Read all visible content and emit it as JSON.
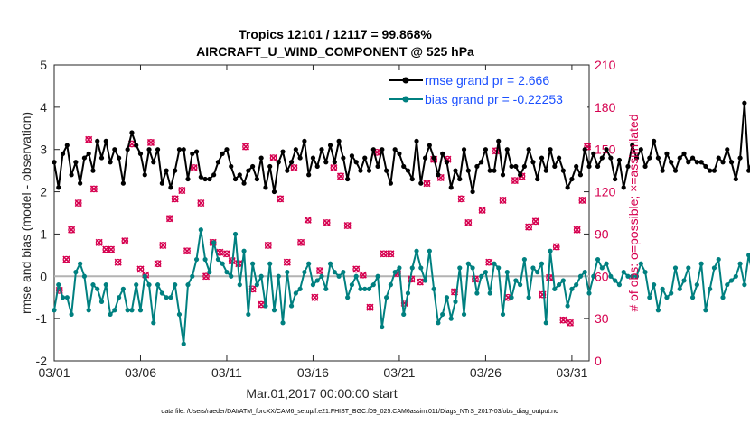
{
  "chart_data": {
    "type": "line",
    "title_line1": "Tropics 12101 / 12117 = 99.868%",
    "title_line2": "AIRCRAFT_U_WIND_COMPONENT @ 525 hPa",
    "xlabel": "Mar.01,2017 00:00:00 start",
    "ylabel": "rmse and bias (model - observation)",
    "ylabel_right": "# of obs: o=possible; ×=assimilated",
    "x_tick_labels": [
      "03/01",
      "03/06",
      "03/11",
      "03/16",
      "03/21",
      "03/26",
      "03/31"
    ],
    "x_tick_days": [
      1,
      6,
      11,
      16,
      21,
      26,
      31
    ],
    "xlim": [
      1,
      32
    ],
    "ylim": [
      -2,
      5
    ],
    "y_ticks": [
      "-2",
      "-1",
      "0",
      "1",
      "2",
      "3",
      "4",
      "5"
    ],
    "ylim_right": [
      0,
      210
    ],
    "y_ticks_right": [
      "0",
      "30",
      "60",
      "90",
      "120",
      "150",
      "180",
      "210"
    ],
    "legend": [
      {
        "label": "rmse grand pr = 2.666",
        "color": "#000000"
      },
      {
        "label": "bias grand pr = -0.22253",
        "color": "#008080"
      }
    ],
    "colors": {
      "rmse": "#000000",
      "bias": "#008080",
      "obs": "#d6004f",
      "zero": "#b3b3b3"
    },
    "series": [
      {
        "name": "rmse",
        "values": [
          2.7,
          2.1,
          2.9,
          3.1,
          2.4,
          2.7,
          2.2,
          2.8,
          2.9,
          2.5,
          3.2,
          2.8,
          3.2,
          2.7,
          3.0,
          2.8,
          2.2,
          3.0,
          3.4,
          3.1,
          2.9,
          2.4,
          3.0,
          2.7,
          3.0,
          2.2,
          2.5,
          2.1,
          2.5,
          3.0,
          3.0,
          2.3,
          2.9,
          2.95,
          2.35,
          2.3,
          2.3,
          2.4,
          2.7,
          2.9,
          3.0,
          2.6,
          2.3,
          2.4,
          2.2,
          2.5,
          2.6,
          2.3,
          2.8,
          2.1,
          2.6,
          2.0,
          2.7,
          2.95,
          2.5,
          2.7,
          3.0,
          2.8,
          3.2,
          2.4,
          2.8,
          2.6,
          3.0,
          2.7,
          3.1,
          2.7,
          3.2,
          2.8,
          2.3,
          2.85,
          2.7,
          2.5,
          2.8,
          2.5,
          3.0,
          2.6,
          3.0,
          2.5,
          2.2,
          3.0,
          2.9,
          2.6,
          2.5,
          2.3,
          3.2,
          2.2,
          2.8,
          3.1,
          2.8,
          2.4,
          2.9,
          2.7,
          2.1,
          2.5,
          2.3,
          3.0,
          2.5,
          2.0,
          2.6,
          2.7,
          3.0,
          2.5,
          2.5,
          3.2,
          2.4,
          3.0,
          2.6,
          2.6,
          2.4,
          2.6,
          3.0,
          2.7,
          2.3,
          2.8,
          2.5,
          3.0,
          2.6,
          2.8,
          2.5,
          2.1,
          2.3,
          2.6,
          2.4,
          3.0,
          2.6,
          2.9,
          2.6,
          2.8,
          3.0,
          2.8,
          2.3,
          2.75,
          2.1,
          2.6,
          3.1,
          2.8,
          3.0,
          2.6,
          2.8,
          3.2,
          2.8,
          2.5,
          2.9,
          2.7,
          2.5,
          2.8,
          2.9,
          2.7,
          2.8,
          2.7,
          2.7,
          2.6,
          2.5,
          2.5,
          2.8,
          2.7,
          3.0,
          2.7,
          2.3,
          2.8,
          4.1,
          2.5,
          2.8,
          2.1,
          3.4,
          2.1,
          2.65,
          2.45,
          2.7,
          2.0,
          3.6,
          2.6,
          2.7,
          2.4,
          3.0,
          2.3,
          2.4,
          2.7,
          3.3,
          2.9,
          3.2,
          3.5,
          3.0,
          3.0,
          4.0,
          2.8,
          2.4,
          2.6,
          2.1,
          2.3,
          2.3,
          2.0,
          2.8,
          2.6,
          2.7,
          2.3,
          2.7,
          2.4,
          2.8,
          1.9,
          3.2,
          2.8,
          3.1,
          3.1
        ]
      },
      {
        "name": "bias",
        "values": [
          -0.8,
          -0.2,
          -0.5,
          -0.5,
          -0.9,
          0.1,
          0.3,
          0.0,
          -0.8,
          -0.2,
          -0.3,
          -0.6,
          -0.2,
          -0.9,
          -0.8,
          -0.5,
          -0.3,
          -0.8,
          -0.8,
          -0.2,
          -0.8,
          0.0,
          -0.2,
          -1.1,
          -0.2,
          -0.4,
          -0.5,
          -0.5,
          -0.2,
          -0.9,
          -1.6,
          -0.2,
          0.0,
          0.4,
          1.1,
          0.4,
          0.1,
          0.8,
          0.4,
          0.3,
          0.1,
          0.0,
          1.0,
          -0.2,
          0.6,
          -0.9,
          0.3,
          -0.2,
          0.0,
          -0.7,
          0.3,
          -0.8,
          0.0,
          -1.1,
          0.1,
          -0.7,
          -0.4,
          -0.3,
          0.1,
          0.3,
          -0.2,
          -0.1,
          0.0,
          -0.3,
          0.3,
          0.1,
          0.0,
          0.1,
          -0.5,
          -0.2,
          0.0,
          -0.3,
          -0.3,
          -0.3,
          -0.2,
          0.0,
          -1.2,
          -0.5,
          -0.2,
          0.1,
          0.2,
          -0.9,
          -0.4,
          0.2,
          0.6,
          0.2,
          -0.1,
          0.6,
          -0.3,
          -1.1,
          -0.9,
          -0.5,
          -1.0,
          -0.6,
          0.2,
          -0.9,
          0.3,
          0.2,
          -0.4,
          0.0,
          0.1,
          -0.4,
          0.3,
          0.2,
          -0.9,
          0.1,
          -0.5,
          -0.1,
          -0.2,
          0.4,
          -0.5,
          0.2,
          0.1,
          0.3,
          -1.1,
          0.6,
          -0.3,
          -0.2,
          -0.1,
          -0.7,
          -0.3,
          -0.2,
          0.0,
          0.1,
          -0.4,
          0.0,
          0.4,
          0.2,
          0.3,
          0.0,
          -0.1,
          -0.2,
          0.1,
          0.0,
          0.0,
          0.0,
          0.3,
          0.1,
          -0.5,
          -0.2,
          -0.8,
          -0.3,
          -0.5,
          -0.4,
          0.2,
          -0.3,
          -0.1,
          0.2,
          -0.5,
          -0.2,
          0.3,
          -0.8,
          -0.3,
          0.2,
          0.4,
          -0.5,
          -0.2,
          -0.1,
          0.0,
          0.3,
          -0.2,
          0.5,
          0.0,
          -0.2,
          0.6,
          0.8,
          -0.6,
          1.3,
          1.8,
          0.4,
          -0.6,
          -0.5,
          -1.0,
          -0.6,
          -1.1,
          -1.3,
          -0.7,
          -0.1,
          -0.3,
          0.0,
          -0.1,
          -0.3,
          -0.5,
          -0.2,
          -0.4,
          -0.3,
          0.2,
          0.6,
          -0.2,
          -0.6,
          0.0,
          -0.6,
          0.2,
          0.2,
          0.0,
          -0.3,
          0.2,
          0.2,
          -0.1,
          0.3,
          0.1,
          -0.2,
          -0.3
        ]
      },
      {
        "name": "obs_possible",
        "x": [
          1.3,
          1.7,
          2.0,
          2.4,
          3.0,
          3.3,
          3.6,
          4.0,
          4.3,
          4.7,
          5.1,
          5.5,
          6.0,
          6.3,
          6.6,
          7.0,
          7.3,
          7.7,
          8.0,
          8.4,
          8.7,
          9.1,
          9.5,
          9.8,
          10.2,
          10.6,
          11.0,
          11.3,
          11.7,
          12.1,
          12.5,
          13.0,
          13.4,
          13.7,
          14.1,
          14.5,
          14.9,
          15.3,
          15.7,
          16.1,
          16.4,
          16.8,
          17.2,
          17.6,
          18.0,
          18.5,
          18.9,
          19.3,
          19.7,
          20.1,
          20.5,
          20.9,
          21.3,
          21.7,
          22.2,
          22.6,
          23.0,
          23.4,
          23.8,
          24.2,
          24.6,
          25.0,
          25.4,
          25.8,
          26.2,
          26.6,
          27.0,
          27.3,
          27.7,
          28.1,
          28.5,
          28.9,
          29.3,
          29.7,
          30.1,
          30.5,
          30.9,
          31.3,
          31.6,
          31.9
        ],
        "values": [
          50,
          72,
          93,
          112,
          157,
          122,
          84,
          79,
          79,
          70,
          85,
          154,
          65,
          61,
          155,
          69,
          82,
          101,
          115,
          121,
          78,
          137,
          112,
          60,
          84,
          77,
          76,
          71,
          69,
          152,
          51,
          40,
          82,
          144,
          115,
          70,
          137,
          84,
          100,
          45,
          64,
          98,
          137,
          131,
          96,
          65,
          61,
          38,
          148,
          76,
          76,
          62,
          41,
          58,
          56,
          126,
          143,
          130,
          143,
          49,
          115,
          98,
          58,
          107,
          70,
          149,
          114,
          45,
          128,
          131,
          95,
          99,
          47,
          59,
          81,
          29,
          27,
          93,
          114,
          152
        ]
      },
      {
        "name": "obs_assimilated",
        "x": [
          1.3,
          1.7,
          2.0,
          2.4,
          3.0,
          3.3,
          3.6,
          4.0,
          4.3,
          4.7,
          5.1,
          5.5,
          6.0,
          6.3,
          6.6,
          7.0,
          7.3,
          7.7,
          8.0,
          8.4,
          8.7,
          9.1,
          9.5,
          9.8,
          10.2,
          10.6,
          11.0,
          11.3,
          11.7,
          12.1,
          12.5,
          13.0,
          13.4,
          13.7,
          14.1,
          14.5,
          14.9,
          15.3,
          15.7,
          16.1,
          16.4,
          16.8,
          17.2,
          17.6,
          18.0,
          18.5,
          18.9,
          19.3,
          19.7,
          20.1,
          20.5,
          20.9,
          21.3,
          21.7,
          22.2,
          22.6,
          23.0,
          23.4,
          23.8,
          24.2,
          24.6,
          25.0,
          25.4,
          25.8,
          26.2,
          26.6,
          27.0,
          27.3,
          27.7,
          28.1,
          28.5,
          28.9,
          29.3,
          29.7,
          30.1,
          30.5,
          30.9,
          31.3,
          31.6,
          31.9
        ],
        "values": [
          50,
          72,
          93,
          112,
          157,
          122,
          84,
          79,
          79,
          70,
          85,
          154,
          65,
          61,
          155,
          69,
          82,
          101,
          115,
          121,
          78,
          137,
          112,
          60,
          84,
          77,
          76,
          71,
          69,
          152,
          51,
          40,
          82,
          144,
          115,
          70,
          137,
          84,
          100,
          45,
          64,
          98,
          137,
          131,
          96,
          65,
          61,
          38,
          148,
          76,
          76,
          62,
          41,
          58,
          56,
          126,
          143,
          130,
          143,
          49,
          115,
          98,
          58,
          107,
          70,
          149,
          114,
          45,
          128,
          131,
          95,
          99,
          47,
          59,
          81,
          29,
          27,
          93,
          114,
          152
        ]
      }
    ],
    "footer": "data file: /Users/raeder/DAI/ATM_forcXX/CAM6_setup/f.e21.FHIST_BGC.f09_025.CAM6assim.011/Diags_NTrS_2017-03/obs_diag_output.nc"
  }
}
